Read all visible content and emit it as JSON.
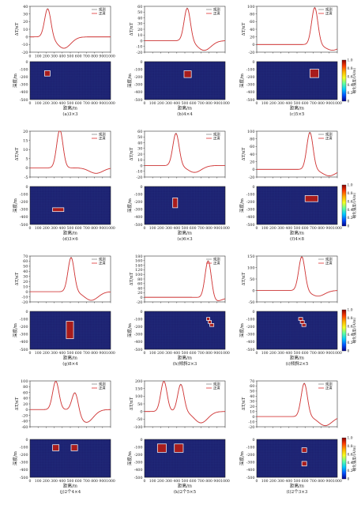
{
  "figure": {
    "legend_labels": [
      "观测",
      "正演"
    ],
    "curve_ylabel": "ΔT/nT",
    "model_ylabel": "深度/m",
    "xlabel": "距离/m",
    "colorbar_label": "磁化强度/(A/m)",
    "colorbar_ticks": [
      "1.0",
      "0.8",
      "0.6",
      "0.4",
      "0.2",
      "0"
    ],
    "colors": {
      "observed": "#8a8a8a",
      "forward": "#e03030",
      "background_cell": "#1b1f6e",
      "grid_line": "#2c3a8a",
      "anomaly": "#a81c1c",
      "anomaly_edge": "#ffffff"
    }
  },
  "chart_data": [
    {
      "type": "line",
      "caption": "(a)3×3",
      "x": [
        0,
        1000
      ],
      "ylim": [
        -20,
        40
      ],
      "yticks": [
        "-20",
        "-10",
        "0",
        "10",
        "20",
        "30",
        "40"
      ],
      "xticks": [
        "0",
        "100",
        "200",
        "300",
        "400",
        "500",
        "600",
        "700",
        "800",
        "900",
        "1000"
      ],
      "series_hint": "single peak near x=220, peak ~38 nT, trough ~-15 nT near x=420",
      "peaks": [
        {
          "x": 220,
          "y": 38
        }
      ],
      "trough": {
        "x": 420,
        "y": -15
      },
      "blocks": [
        {
          "x0": 180,
          "x1": 250,
          "y0": -120,
          "y1": -190
        }
      ]
    },
    {
      "type": "line",
      "caption": "(b)4×4",
      "x": [
        0,
        1000
      ],
      "ylim": [
        -20,
        60
      ],
      "yticks": [
        "-20",
        "-10",
        "0",
        "10",
        "20",
        "30",
        "40",
        "50",
        "60"
      ],
      "peaks": [
        {
          "x": 530,
          "y": 58
        }
      ],
      "trough": {
        "x": 740,
        "y": -17
      },
      "blocks": [
        {
          "x0": 490,
          "x1": 580,
          "y0": -120,
          "y1": -210
        }
      ]
    },
    {
      "type": "line",
      "caption": "(c)5×5",
      "x": [
        0,
        1000
      ],
      "ylim": [
        -20,
        100
      ],
      "yticks": [
        "-20",
        "0",
        "20",
        "40",
        "60",
        "80",
        "100"
      ],
      "peaks": [
        {
          "x": 720,
          "y": 98
        }
      ],
      "trough": {
        "x": 940,
        "y": -15
      },
      "blocks": [
        {
          "x0": 660,
          "x1": 770,
          "y0": -100,
          "y1": -210
        }
      ]
    },
    {
      "type": "line",
      "caption": "(d)3×6",
      "x": [
        0,
        1000
      ],
      "ylim": [
        -5,
        20
      ],
      "yticks": [
        "-5",
        "0",
        "5",
        "10",
        "15",
        "20"
      ],
      "peaks": [
        {
          "x": 370,
          "y": 21
        }
      ],
      "trough": {
        "x": 820,
        "y": -3
      },
      "blocks": [
        {
          "x0": 280,
          "x1": 420,
          "y0": -280,
          "y1": -330
        }
      ]
    },
    {
      "type": "line",
      "caption": "(e)6×3",
      "x": [
        0,
        1000
      ],
      "ylim": [
        -20,
        60
      ],
      "yticks": [
        "-20",
        "-10",
        "0",
        "10",
        "20",
        "30",
        "40",
        "50",
        "60"
      ],
      "peaks": [
        {
          "x": 390,
          "y": 57
        }
      ],
      "trough": {
        "x": 620,
        "y": -12
      },
      "blocks": [
        {
          "x0": 350,
          "x1": 410,
          "y0": -150,
          "y1": -280
        }
      ]
    },
    {
      "type": "line",
      "caption": "(f)4×8",
      "x": [
        0,
        1000
      ],
      "ylim": [
        -20,
        100
      ],
      "yticks": [
        "-20",
        "0",
        "20",
        "40",
        "60",
        "80",
        "100"
      ],
      "peaks": [
        {
          "x": 660,
          "y": 98
        }
      ],
      "trough": {
        "x": 900,
        "y": -17
      },
      "blocks": [
        {
          "x0": 600,
          "x1": 760,
          "y0": -120,
          "y1": -200
        }
      ]
    },
    {
      "type": "line",
      "caption": "(g)8×4",
      "x": [
        0,
        1000
      ],
      "ylim": [
        -20,
        70
      ],
      "yticks": [
        "-20",
        "-10",
        "0",
        "10",
        "20",
        "30",
        "40",
        "50",
        "60",
        "70"
      ],
      "peaks": [
        {
          "x": 510,
          "y": 68
        }
      ],
      "trough": {
        "x": 760,
        "y": -17
      },
      "blocks": [
        {
          "x0": 450,
          "x1": 540,
          "y0": -130,
          "y1": -360
        }
      ]
    },
    {
      "type": "line",
      "caption": "(h)倾斜2×3",
      "x": [
        0,
        1000
      ],
      "ylim": [
        -20,
        180
      ],
      "yticks": [
        "-20",
        "0",
        "20",
        "40",
        "60",
        "80",
        "100",
        "120",
        "140",
        "160",
        "180"
      ],
      "peaks": [
        {
          "x": 790,
          "y": 170
        }
      ],
      "trough": {
        "x": 880,
        "y": -17
      },
      "blocks": [
        {
          "x0": 770,
          "x1": 810,
          "y0": -80,
          "y1": -120
        },
        {
          "x0": 790,
          "x1": 830,
          "y0": -120,
          "y1": -160
        },
        {
          "x0": 810,
          "x1": 860,
          "y0": -160,
          "y1": -200
        }
      ]
    },
    {
      "type": "line",
      "caption": "(i)倾斜2×5",
      "x": [
        0,
        1000
      ],
      "ylim": [
        -50,
        150
      ],
      "yticks": [
        "-50",
        "0",
        "50",
        "100",
        "150"
      ],
      "peaks": [
        {
          "x": 560,
          "y": 150
        }
      ],
      "trough": {
        "x": 760,
        "y": -25
      },
      "blocks": [
        {
          "x0": 520,
          "x1": 570,
          "y0": -80,
          "y1": -120
        },
        {
          "x0": 540,
          "x1": 590,
          "y0": -120,
          "y1": -160
        },
        {
          "x0": 560,
          "x1": 610,
          "y0": -160,
          "y1": -200
        }
      ]
    },
    {
      "type": "line",
      "caption": "(j)2个4×4",
      "x": [
        0,
        1000
      ],
      "ylim": [
        -60,
        100
      ],
      "yticks": [
        "-60",
        "-40",
        "-20",
        "0",
        "20",
        "40",
        "60",
        "80",
        "100"
      ],
      "peaks": [
        {
          "x": 320,
          "y": 100
        },
        {
          "x": 560,
          "y": 70
        }
      ],
      "trough": {
        "x": 700,
        "y": -45
      },
      "blocks": [
        {
          "x0": 280,
          "x1": 360,
          "y0": -70,
          "y1": -150
        },
        {
          "x0": 510,
          "x1": 590,
          "y0": -70,
          "y1": -150
        }
      ]
    },
    {
      "type": "line",
      "caption": "(k)2个5×5",
      "x": [
        0,
        1000
      ],
      "ylim": [
        -100,
        200
      ],
      "yticks": [
        "-100",
        "-50",
        "0",
        "50",
        "100",
        "150",
        "200"
      ],
      "peaks": [
        {
          "x": 240,
          "y": 200
        },
        {
          "x": 450,
          "y": 180
        }
      ],
      "trough": {
        "x": 700,
        "y": -75
      },
      "blocks": [
        {
          "x0": 160,
          "x1": 270,
          "y0": -60,
          "y1": -170
        },
        {
          "x0": 370,
          "x1": 480,
          "y0": -60,
          "y1": -170
        }
      ]
    },
    {
      "type": "line",
      "caption": "(l)2个3×3",
      "x": [
        0,
        1000
      ],
      "ylim": [
        -20,
        70
      ],
      "yticks": [
        "-20",
        "-10",
        "0",
        "10",
        "20",
        "30",
        "40",
        "50",
        "60",
        "70"
      ],
      "peaks": [
        {
          "x": 590,
          "y": 66
        }
      ],
      "trough": {
        "x": 850,
        "y": -18
      },
      "blocks": [
        {
          "x0": 560,
          "x1": 620,
          "y0": -110,
          "y1": -170
        },
        {
          "x0": 560,
          "x1": 620,
          "y0": -290,
          "y1": -350
        }
      ]
    }
  ]
}
